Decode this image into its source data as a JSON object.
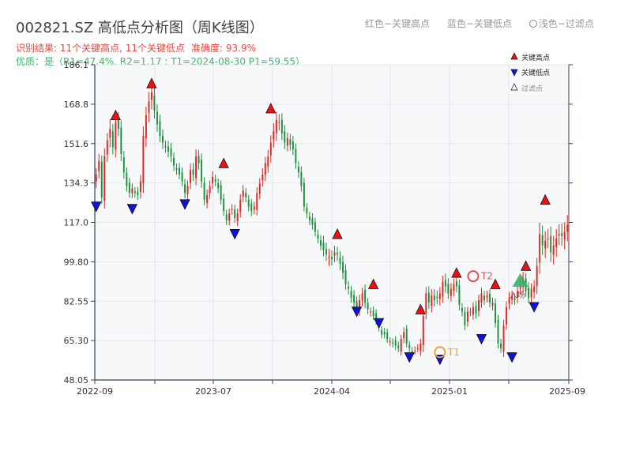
{
  "header": {
    "title": "002821.SZ 高低点分析图（周K线图）",
    "legend_high": "红色−关键高点",
    "legend_low": "蓝色−关键低点",
    "legend_filtered": "浅色−过滤点",
    "result": "识别结果: 11个关键高点, 11个关键低点",
    "accuracy": "准确度: 93.9%",
    "quality": "优质：是（R1=47.4%, R2=1.17 ; T1=2024-08-30 P1=59.55）"
  },
  "colors": {
    "up": "#e0251d",
    "down": "#1a8f3c",
    "high_marker": "#ee1111",
    "low_marker": "#1111dd",
    "plot_bg": "#f6f8fa",
    "grid": "#e4e7ec",
    "axis": "#33445a",
    "tpoint": "#e8a33a",
    "t2": "#e2534f",
    "buy": "#3cae6a"
  },
  "chart_data": {
    "type": "candlestick",
    "title": "002821.SZ 高低点分析图（周K线图）",
    "ylim": [
      48.05,
      186.1
    ],
    "y_ticks": [
      "48.05",
      "65.30",
      "82.55",
      "99.80",
      "117.0",
      "134.3",
      "151.6",
      "168.8",
      "186.1"
    ],
    "x_ticks": [
      "2022-09",
      "2023-07",
      "2024-04",
      "2025-01",
      "2025-09"
    ],
    "series_close": [
      138,
      144,
      128,
      146,
      153,
      158,
      150,
      161,
      158,
      147,
      139,
      133,
      130,
      132,
      130,
      129,
      135,
      155,
      164,
      170,
      174,
      166,
      160,
      155,
      152,
      150,
      148,
      146,
      142,
      140,
      138,
      135,
      130,
      133,
      140,
      138,
      146,
      143,
      135,
      127,
      129,
      133,
      137,
      135,
      132,
      127,
      122,
      118,
      121,
      123,
      119,
      121,
      127,
      131,
      128,
      124,
      122,
      124,
      130,
      134,
      138,
      143,
      146,
      152,
      157,
      162,
      161,
      156,
      152,
      154,
      151,
      149,
      143,
      139,
      133,
      124,
      121,
      118,
      116,
      113,
      110,
      107,
      105,
      103,
      102,
      101,
      104,
      103,
      99,
      95,
      90,
      88,
      84,
      82,
      80,
      83,
      86,
      82,
      79,
      78,
      76,
      74,
      71,
      68,
      68,
      66,
      65,
      64,
      63,
      62,
      66,
      69,
      64,
      62,
      60,
      61,
      62,
      64,
      76,
      86,
      82,
      85,
      83,
      84,
      86,
      91,
      89,
      86,
      88,
      90,
      89,
      81,
      78,
      72,
      78,
      78,
      80,
      77,
      83,
      86,
      83,
      85,
      82,
      82,
      73,
      64,
      62,
      72,
      80,
      84,
      85,
      83,
      87,
      90,
      93,
      87,
      84,
      88,
      89,
      98,
      112,
      107,
      109,
      110,
      104,
      107,
      110,
      112,
      111,
      113,
      116
    ],
    "series_range": [
      8,
      9,
      8,
      10,
      9,
      12,
      9,
      10,
      9,
      9,
      8,
      7,
      6,
      6,
      6,
      6,
      8,
      12,
      11,
      12,
      12,
      10,
      9,
      8,
      8,
      7,
      7,
      7,
      7,
      6,
      6,
      6,
      7,
      7,
      8,
      8,
      9,
      8,
      8,
      7,
      7,
      7,
      7,
      6,
      6,
      6,
      6,
      6,
      6,
      6,
      6,
      6,
      7,
      7,
      6,
      6,
      6,
      6,
      7,
      7,
      8,
      8,
      8,
      9,
      10,
      10,
      10,
      8,
      8,
      7,
      7,
      7,
      7,
      7,
      7,
      6,
      6,
      6,
      6,
      6,
      6,
      6,
      8,
      8,
      10,
      8,
      8,
      8,
      8,
      8,
      7,
      7,
      6,
      6,
      6,
      7,
      7,
      7,
      6,
      5,
      5,
      5,
      5,
      5,
      5,
      5,
      5,
      5,
      5,
      5,
      5,
      6,
      5,
      5,
      5,
      5,
      5,
      6,
      9,
      8,
      8,
      8,
      8,
      8,
      8,
      8,
      8,
      7,
      7,
      7,
      7,
      7,
      6,
      6,
      6,
      5,
      6,
      6,
      7,
      7,
      6,
      6,
      6,
      6,
      6,
      6,
      6,
      7,
      7,
      7,
      6,
      6,
      7,
      7,
      7,
      7,
      7,
      7,
      8,
      10,
      14,
      12,
      12,
      12,
      12,
      12,
      12,
      12,
      12,
      12,
      12
    ],
    "key_highs": [
      {
        "index": 7,
        "value": 162
      },
      {
        "index": 20,
        "value": 176
      },
      {
        "index": 46,
        "value": 141
      },
      {
        "index": 63,
        "value": 165
      },
      {
        "index": 87,
        "value": 110
      },
      {
        "index": 100,
        "value": 88
      },
      {
        "index": 117,
        "value": 77
      },
      {
        "index": 130,
        "value": 93
      },
      {
        "index": 144,
        "value": 88
      },
      {
        "index": 155,
        "value": 96
      },
      {
        "index": 162,
        "value": 125
      }
    ],
    "key_lows": [
      {
        "index": 0,
        "value": 126
      },
      {
        "index": 13,
        "value": 125
      },
      {
        "index": 32,
        "value": 127
      },
      {
        "index": 50,
        "value": 114
      },
      {
        "index": 94,
        "value": 80
      },
      {
        "index": 102,
        "value": 75
      },
      {
        "index": 113,
        "value": 60
      },
      {
        "index": 124,
        "value": 59
      },
      {
        "index": 139,
        "value": 68
      },
      {
        "index": 150,
        "value": 60
      },
      {
        "index": 158,
        "value": 82
      }
    ],
    "t1": {
      "index": 124,
      "value": 59.55,
      "label": "T1"
    },
    "t2": {
      "index": 136,
      "value": 93.5,
      "label": "T2"
    },
    "buy_signal": {
      "index": 153,
      "value": 91,
      "label": "入场"
    },
    "legend": {
      "position": "top-right",
      "items": [
        "关键高点",
        "关键低点",
        "过滤点"
      ]
    }
  }
}
